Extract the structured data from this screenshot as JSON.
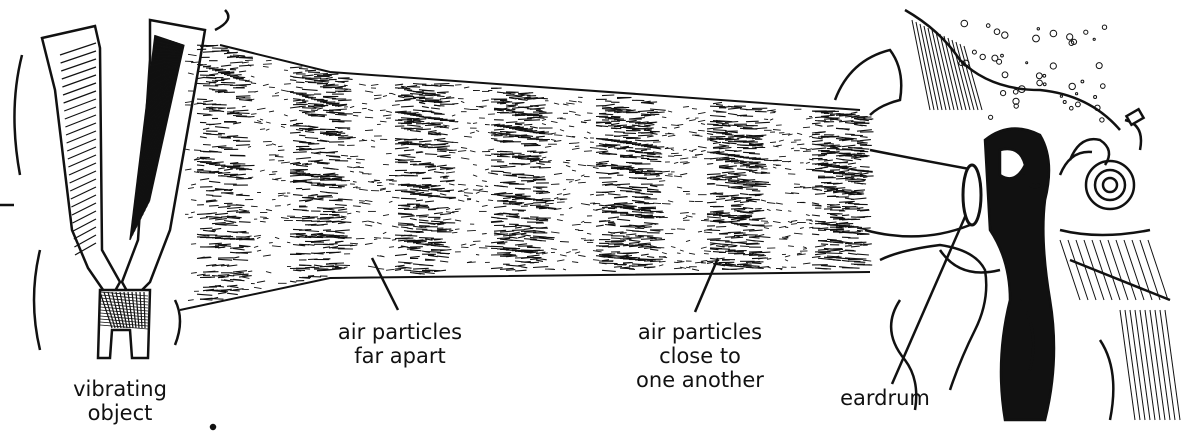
{
  "diagram": {
    "labels": {
      "vibrating_object": {
        "line1": "vibrating",
        "line2": "object"
      },
      "far_apart": {
        "line1": "air particles",
        "line2": "far apart"
      },
      "close_together": {
        "line1": "air particles",
        "line2": "close to",
        "line3": "one another"
      },
      "eardrum": {
        "line1": "eardrum"
      }
    },
    "ink_color": "#111111",
    "background_color": "#ffffff"
  }
}
